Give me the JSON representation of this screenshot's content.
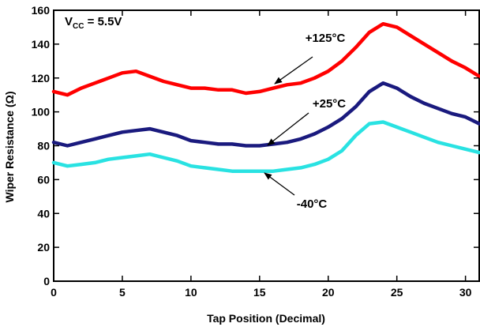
{
  "chart_data": {
    "type": "line",
    "title": "",
    "xlabel": "Tap Position (Decimal)",
    "ylabel": "Wiper Resistance (Ω)",
    "xlim": [
      0,
      31
    ],
    "ylim": [
      0,
      160
    ],
    "xticks": [
      0,
      5,
      10,
      15,
      20,
      25,
      30
    ],
    "yticks": [
      0,
      20,
      40,
      60,
      80,
      100,
      120,
      140,
      160
    ],
    "grid": false,
    "annotation": {
      "v": "V",
      "sub": "CC",
      "rest": " = 5.5V"
    },
    "series": [
      {
        "name": "+125°C",
        "color": "#ff0000",
        "x": [
          0,
          1,
          2,
          3,
          4,
          5,
          6,
          7,
          8,
          9,
          10,
          11,
          12,
          13,
          14,
          15,
          16,
          17,
          18,
          19,
          20,
          21,
          22,
          23,
          24,
          25,
          26,
          27,
          28,
          29,
          30,
          31
        ],
        "y": [
          112,
          110,
          114,
          117,
          120,
          123,
          124,
          121,
          118,
          116,
          114,
          114,
          113,
          113,
          111,
          112,
          114,
          116,
          117,
          120,
          124,
          130,
          138,
          147,
          152,
          150,
          145,
          140,
          135,
          130,
          126,
          121
        ]
      },
      {
        "name": "+25°C",
        "color": "#1a1a7e",
        "x": [
          0,
          1,
          2,
          3,
          4,
          5,
          6,
          7,
          8,
          9,
          10,
          11,
          12,
          13,
          14,
          15,
          16,
          17,
          18,
          19,
          20,
          21,
          22,
          23,
          24,
          25,
          26,
          27,
          28,
          29,
          30,
          31
        ],
        "y": [
          82,
          80,
          82,
          84,
          86,
          88,
          89,
          90,
          88,
          86,
          83,
          82,
          81,
          81,
          80,
          80,
          81,
          82,
          84,
          87,
          91,
          96,
          103,
          112,
          117,
          114,
          109,
          105,
          102,
          99,
          97,
          93
        ]
      },
      {
        "name": "-40°C",
        "color": "#29e2e2",
        "x": [
          0,
          1,
          2,
          3,
          4,
          5,
          6,
          7,
          8,
          9,
          10,
          11,
          12,
          13,
          14,
          15,
          16,
          17,
          18,
          19,
          20,
          21,
          22,
          23,
          24,
          25,
          26,
          27,
          28,
          29,
          30,
          31
        ],
        "y": [
          70,
          68,
          69,
          70,
          72,
          73,
          74,
          75,
          73,
          71,
          68,
          67,
          66,
          65,
          65,
          65,
          65,
          66,
          67,
          69,
          72,
          77,
          86,
          93,
          94,
          91,
          88,
          85,
          82,
          80,
          78,
          76
        ]
      }
    ]
  }
}
